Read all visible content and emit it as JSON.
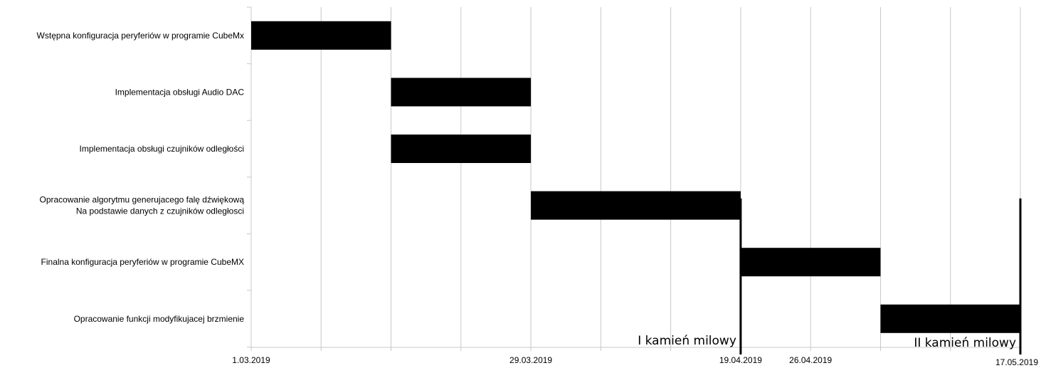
{
  "chart_data": {
    "type": "gantt",
    "title": "",
    "x_axis": {
      "start": "2019-03-01",
      "end": "2019-05-17",
      "tick_labels": [
        {
          "date": "2019-03-01",
          "label": "1.03.2019"
        },
        {
          "date": "2019-03-29",
          "label": "29.03.2019"
        },
        {
          "date": "2019-04-19",
          "label": "19.04.2019"
        },
        {
          "date": "2019-04-26",
          "label": "26.04.2019"
        },
        {
          "date": "2019-05-17",
          "label": "17.05.2019"
        }
      ],
      "grid": "weekly vertical gridlines"
    },
    "tasks": [
      {
        "label": "Wstępna konfiguracja peryferiów w programie CubeMx",
        "start": "2019-03-01",
        "end": "2019-03-15"
      },
      {
        "label": "Implementacja obsługi Audio DAC",
        "start": "2019-03-15",
        "end": "2019-03-29"
      },
      {
        "label": "Implementacja obsługi czujników odległości",
        "start": "2019-03-15",
        "end": "2019-03-29"
      },
      {
        "label": [
          "Opracowanie algorytmu generujacego falę dźwiękową",
          "Na podstawie danych z czujników odległosci"
        ],
        "start": "2019-03-29",
        "end": "2019-04-19"
      },
      {
        "label": "Finalna konfiguracja peryferiów w programie CubeMX",
        "start": "2019-04-19",
        "end": "2019-05-03"
      },
      {
        "label": "Opracowanie funkcji modyfikujacej brzmienie",
        "start": "2019-05-03",
        "end": "2019-05-17"
      }
    ],
    "milestones": [
      {
        "label": "I kamień milowy",
        "date": "2019-04-19"
      },
      {
        "label": "II kamień milowy",
        "date": "2019-05-17"
      }
    ],
    "bar_color": "#000000",
    "grid_color": "#c8c8c8"
  }
}
